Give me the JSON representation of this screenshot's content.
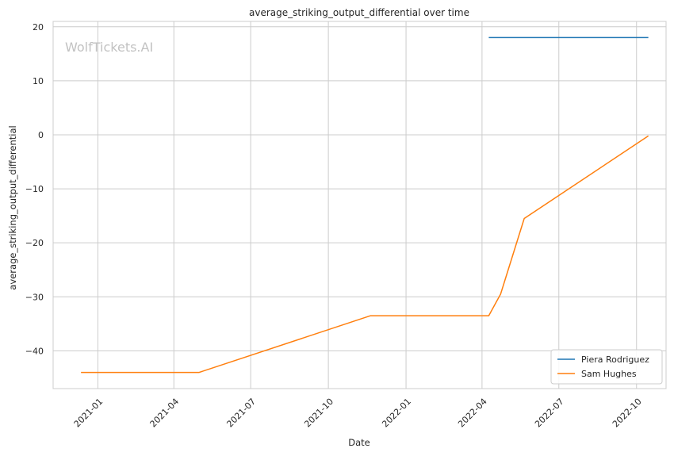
{
  "chart_data": {
    "type": "line",
    "title": "average_striking_output_differential over time",
    "xlabel": "Date",
    "ylabel": "average_striking_output_differential",
    "watermark": "WolfTickets.AI",
    "ylim": [
      -47,
      21
    ],
    "xlim": [
      "2020-11-09",
      "2022-11-05"
    ],
    "yticks": [
      20,
      10,
      0,
      -10,
      -20,
      -30,
      -40
    ],
    "ytick_labels": [
      "20",
      "10",
      "0",
      "−10",
      "−20",
      "−30",
      "−40"
    ],
    "xticks": [
      "2021-01-01",
      "2021-04-01",
      "2021-07-01",
      "2021-10-01",
      "2022-01-01",
      "2022-04-01",
      "2022-07-01",
      "2022-10-01"
    ],
    "xtick_labels": [
      "2021-01",
      "2021-04",
      "2021-07",
      "2021-10",
      "2022-01",
      "2022-04",
      "2022-07",
      "2022-10"
    ],
    "grid": true,
    "legend_position": "bottom-right",
    "series": [
      {
        "name": "Piera Rodriguez",
        "color": "#1f77b4",
        "points": [
          {
            "x": "2022-04-09",
            "y": 18
          },
          {
            "x": "2022-10-15",
            "y": 18
          }
        ]
      },
      {
        "name": "Sam Hughes",
        "color": "#ff7f0e",
        "points": [
          {
            "x": "2020-12-12",
            "y": -44
          },
          {
            "x": "2021-05-01",
            "y": -44
          },
          {
            "x": "2021-11-20",
            "y": -33.5
          },
          {
            "x": "2022-04-09",
            "y": -33.5
          },
          {
            "x": "2022-04-23",
            "y": -29.5
          },
          {
            "x": "2022-05-21",
            "y": -15.5
          },
          {
            "x": "2022-10-15",
            "y": -0.2
          }
        ]
      }
    ]
  }
}
